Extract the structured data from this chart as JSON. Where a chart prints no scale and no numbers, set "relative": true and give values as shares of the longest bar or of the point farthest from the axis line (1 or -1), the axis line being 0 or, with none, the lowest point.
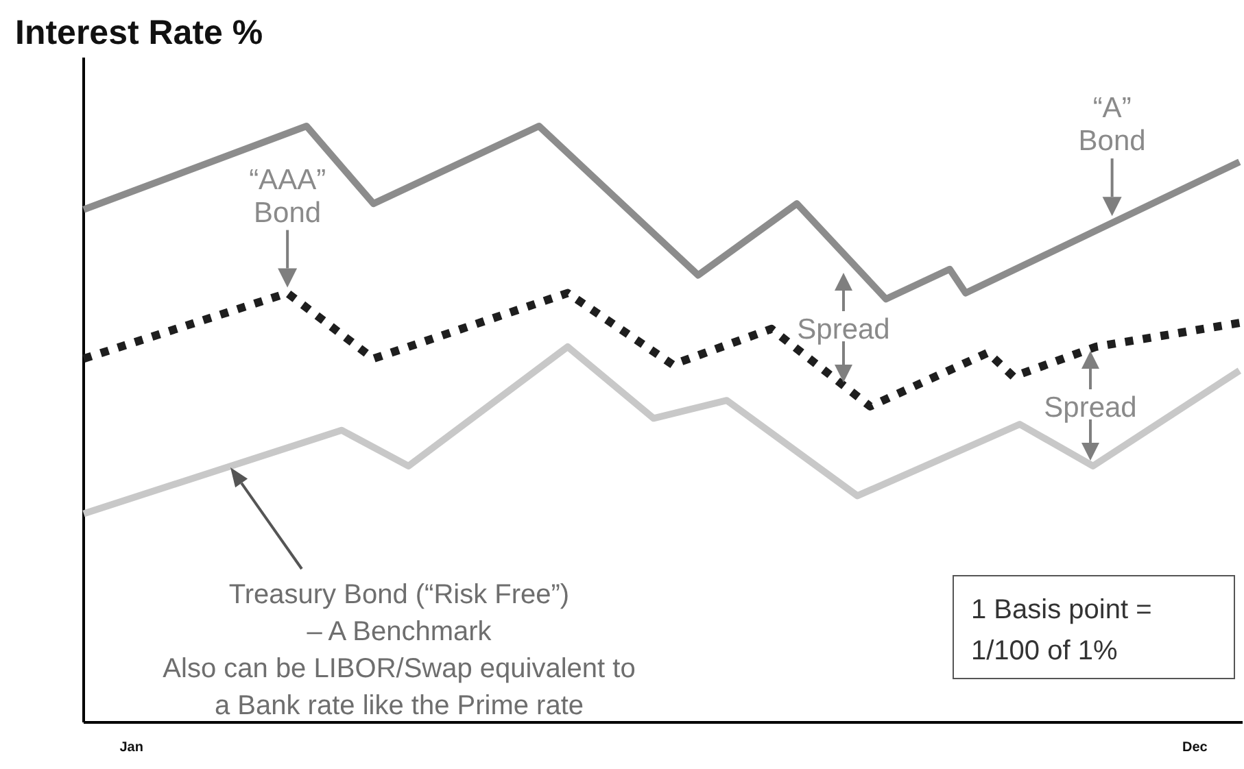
{
  "chart_data": {
    "type": "line",
    "ylabel": "Interest Rate %",
    "relative": true,
    "xlim": [
      "--01-01",
      "--12-31"
    ],
    "xticks": [
      {
        "value": "--01-16",
        "label": "Jan"
      },
      {
        "value": "--12-16",
        "label": "Dec"
      }
    ],
    "line_style": "solid",
    "series": [
      {
        "color": "#8c8c8c",
        "x": [
          "--01-01",
          "--03-12",
          "--04-02",
          "--05-24",
          "--07-13",
          "--08-13",
          "--09-10",
          "--09-30",
          "--10-05",
          "--12-30"
        ],
        "values": [
          0.86,
          1.0,
          0.87,
          1.0,
          0.75,
          0.87,
          0.71,
          0.76,
          0.72,
          0.94
        ]
      },
      {
        "color": "#1e1e1e",
        "line_style": "dotted",
        "x": [
          "--01-01",
          "--03-06",
          "--04-02",
          "--06-02",
          "--07-05",
          "--08-05",
          "--09-05",
          "--10-12",
          "--10-20",
          "--11-15",
          "--12-30"
        ],
        "values": [
          0.61,
          0.72,
          0.61,
          0.72,
          0.6,
          0.66,
          0.53,
          0.62,
          0.58,
          0.63,
          0.67
        ]
      },
      {
        "color": "#c8c8c8",
        "x": [
          "--01-01",
          "--03-23",
          "--04-13",
          "--06-02",
          "--06-29",
          "--07-22",
          "--09-01",
          "--10-22",
          "--11-14",
          "--12-30"
        ],
        "values": [
          0.35,
          0.49,
          0.43,
          0.63,
          0.51,
          0.54,
          0.38,
          0.5,
          0.43,
          0.59
        ]
      }
    ],
    "annotations": [
      {
        "text": "“AAA”\nBond",
        "x": "--03-06",
        "y": 0.72
      },
      {
        "text": "“A”\nBond",
        "x": "--11-20",
        "y": 0.84
      },
      "Spread",
      "Spread",
      "Treasury Bond (“Risk Free”)\n– A Benchmark\nAlso can be LIBOR/Swap equivalent to\na Bank rate like the Prime rate",
      "1 Basis point =\n1/100 of 1%"
    ]
  }
}
